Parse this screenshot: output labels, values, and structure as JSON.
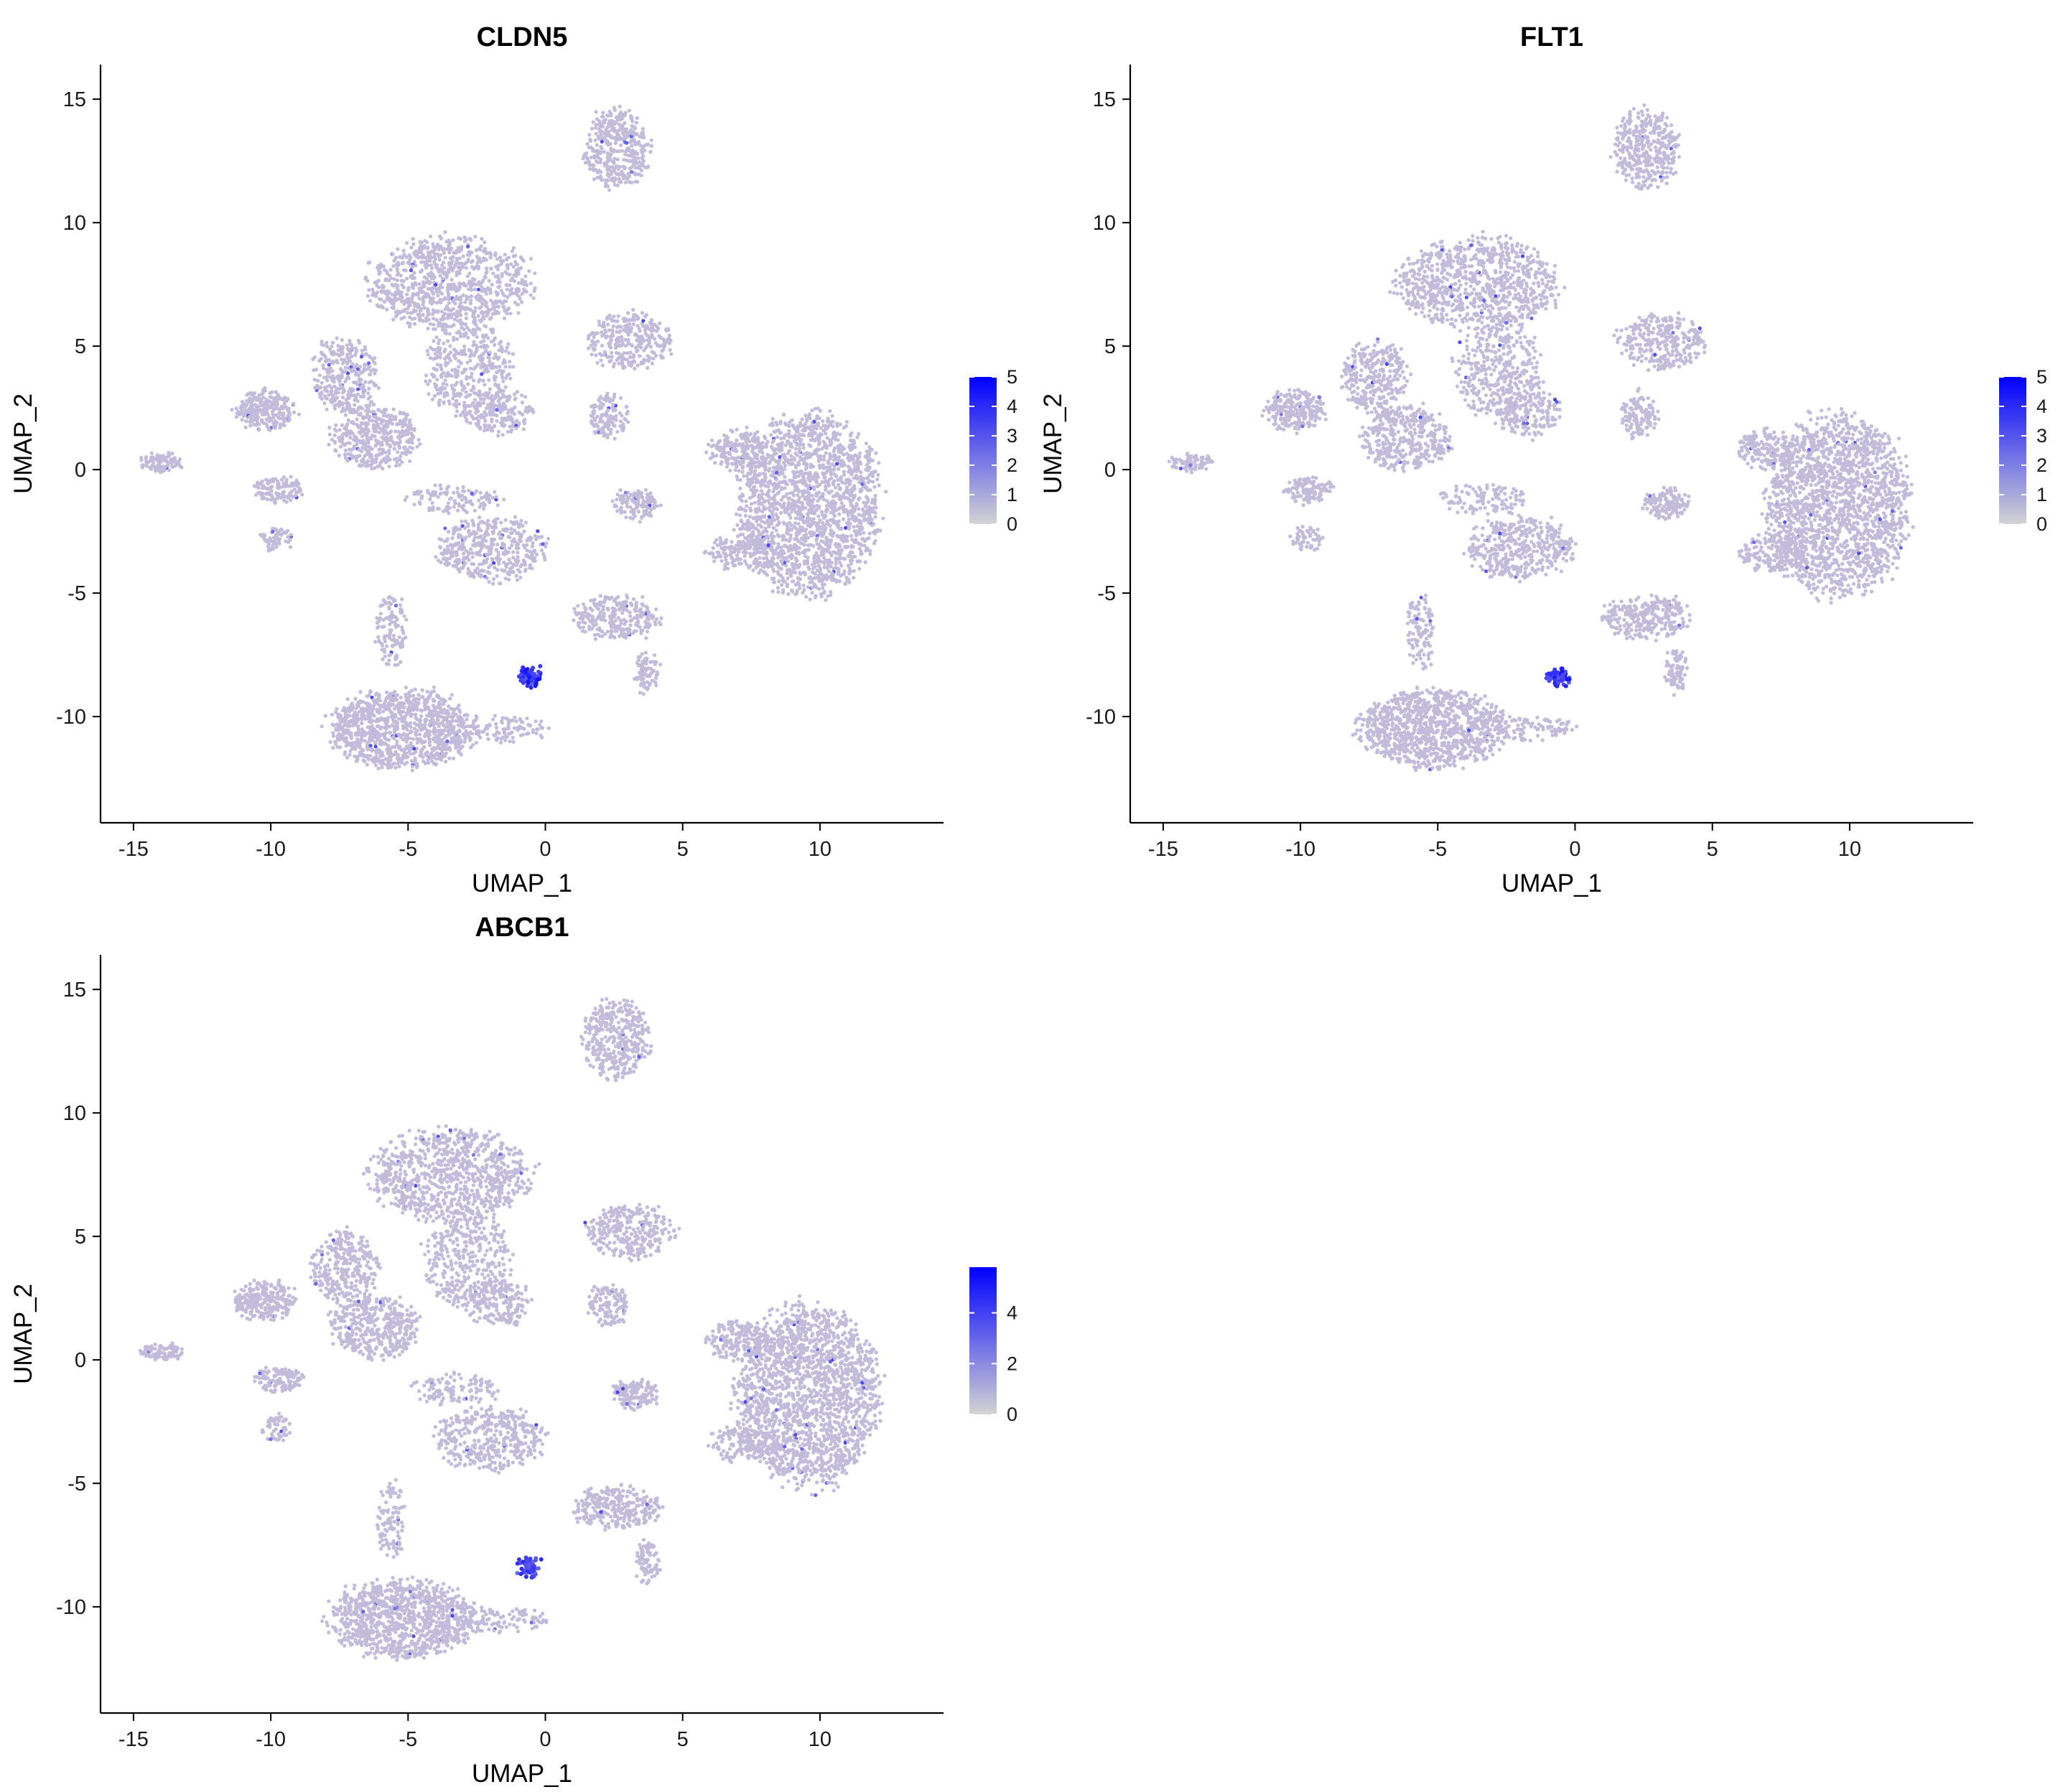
{
  "colors": {
    "low": "#d3d3d3",
    "high": "#0000ff",
    "background": "#ffffff",
    "axis": "#000000"
  },
  "chart_data": [
    {
      "type": "scatter",
      "title": "CLDN5",
      "xlabel": "UMAP_1",
      "ylabel": "UMAP_2",
      "xlim": [
        -16.2,
        14.5
      ],
      "ylim": [
        -14.3,
        16.4
      ],
      "xticks": [
        -15,
        -10,
        -5,
        0,
        5,
        10
      ],
      "yticks": [
        -10,
        -5,
        0,
        5,
        10,
        15
      ],
      "grid": false,
      "legend": {
        "placement": "right",
        "colorscale": [
          "#d3d3d3",
          "#0000ff"
        ],
        "range": [
          0,
          5
        ],
        "ticks": [
          0,
          1,
          2,
          3,
          4,
          5
        ]
      },
      "hotspot": {
        "x": -0.6,
        "y": -8.4,
        "expression": 4.6
      }
    },
    {
      "type": "scatter",
      "title": "FLT1",
      "xlabel": "UMAP_1",
      "ylabel": "UMAP_2",
      "xlim": [
        -16.2,
        14.5
      ],
      "ylim": [
        -14.3,
        16.4
      ],
      "xticks": [
        -15,
        -10,
        -5,
        0,
        5,
        10
      ],
      "yticks": [
        -10,
        -5,
        0,
        5,
        10,
        15
      ],
      "grid": false,
      "legend": {
        "placement": "right",
        "colorscale": [
          "#d3d3d3",
          "#0000ff"
        ],
        "range": [
          0,
          5
        ],
        "ticks": [
          0,
          1,
          2,
          3,
          4,
          5
        ]
      },
      "hotspot": {
        "x": -0.6,
        "y": -8.4,
        "expression": 4.7
      }
    },
    {
      "type": "scatter",
      "title": "ABCB1",
      "xlabel": "UMAP_1",
      "ylabel": "UMAP_2",
      "xlim": [
        -16.2,
        14.5
      ],
      "ylim": [
        -14.3,
        16.4
      ],
      "xticks": [
        -15,
        -10,
        -5,
        0,
        5,
        10
      ],
      "yticks": [
        -10,
        -5,
        0,
        5,
        10,
        15
      ],
      "grid": false,
      "legend": {
        "placement": "right",
        "colorscale": [
          "#d3d3d3",
          "#0000ff"
        ],
        "range": [
          0,
          5.8
        ],
        "ticks": [
          0,
          2,
          4
        ]
      },
      "hotspot": {
        "x": -0.6,
        "y": -8.4,
        "expression": 4.5
      }
    }
  ],
  "clusters": [
    {
      "x": -14.0,
      "y": 0.3,
      "rx": 0.8,
      "ry": 0.35,
      "n": 90
    },
    {
      "x": -10.2,
      "y": 2.4,
      "rx": 1.1,
      "ry": 0.8,
      "n": 260
    },
    {
      "x": -9.7,
      "y": -0.8,
      "rx": 0.9,
      "ry": 0.5,
      "n": 120
    },
    {
      "x": -9.8,
      "y": -2.8,
      "rx": 0.6,
      "ry": 0.5,
      "n": 60
    },
    {
      "x": -7.3,
      "y": 3.8,
      "rx": 1.2,
      "ry": 1.5,
      "n": 300
    },
    {
      "x": -6.2,
      "y": 1.3,
      "rx": 1.6,
      "ry": 1.3,
      "n": 420
    },
    {
      "x": -3.5,
      "y": 7.5,
      "rx": 3.0,
      "ry": 1.9,
      "n": 900
    },
    {
      "x": -2.8,
      "y": 4.0,
      "rx": 1.6,
      "ry": 1.9,
      "n": 380
    },
    {
      "x": -1.7,
      "y": 2.3,
      "rx": 1.2,
      "ry": 0.9,
      "n": 180
    },
    {
      "x": -3.3,
      "y": -1.2,
      "rx": 1.7,
      "ry": 0.6,
      "n": 120
    },
    {
      "x": -2.0,
      "y": -3.2,
      "rx": 2.0,
      "ry": 1.3,
      "n": 420
    },
    {
      "x": -5.6,
      "y": -6.5,
      "rx": 0.5,
      "ry": 1.6,
      "n": 110
    },
    {
      "x": -5.2,
      "y": -10.5,
      "rx": 2.7,
      "ry": 1.6,
      "n": 1050
    },
    {
      "x": -1.5,
      "y": -10.5,
      "rx": 1.6,
      "ry": 0.5,
      "n": 100
    },
    {
      "x": 2.6,
      "y": 13.0,
      "rx": 1.2,
      "ry": 1.6,
      "n": 380
    },
    {
      "x": 3.1,
      "y": 5.2,
      "rx": 1.6,
      "ry": 1.1,
      "n": 300
    },
    {
      "x": 2.3,
      "y": 2.2,
      "rx": 0.7,
      "ry": 0.9,
      "n": 130
    },
    {
      "x": 3.3,
      "y": -1.4,
      "rx": 0.8,
      "ry": 0.6,
      "n": 140
    },
    {
      "x": 2.6,
      "y": -6.0,
      "rx": 1.6,
      "ry": 0.9,
      "n": 280
    },
    {
      "x": 3.7,
      "y": -8.2,
      "rx": 0.4,
      "ry": 0.9,
      "n": 80
    },
    {
      "x": 9.6,
      "y": -1.4,
      "rx": 2.6,
      "ry": 3.7,
      "n": 1900
    },
    {
      "x": 7.0,
      "y": 0.8,
      "rx": 1.1,
      "ry": 0.8,
      "n": 180
    },
    {
      "x": 7.2,
      "y": -3.4,
      "rx": 1.3,
      "ry": 0.7,
      "n": 170
    }
  ]
}
